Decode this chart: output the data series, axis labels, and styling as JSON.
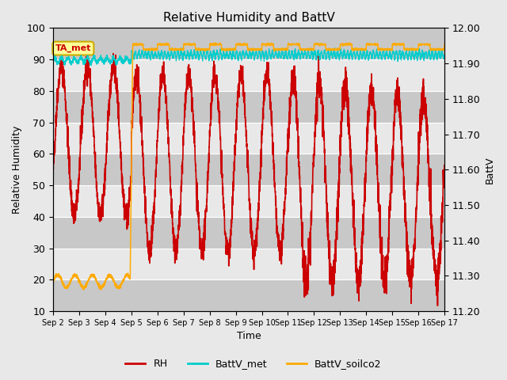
{
  "title": "Relative Humidity and BattV",
  "ylabel_left": "Relative Humidity",
  "ylabel_right": "BattV",
  "xlabel": "Time",
  "ylim_left": [
    10,
    100
  ],
  "ylim_right": [
    11.2,
    12.0
  ],
  "x_tick_labels": [
    "Sep 2",
    "Sep 3",
    "Sep 4",
    "Sep 5",
    "Sep 6",
    "Sep 7",
    "Sep 8",
    "Sep 9",
    "Sep 10",
    "Sep 11",
    "Sep 12",
    "Sep 13",
    "Sep 14",
    "Sep 15",
    "Sep 16",
    "Sep 17"
  ],
  "annotation_text": "TA_met",
  "annotation_color": "#cc0000",
  "annotation_bg": "#ffff99",
  "annotation_border": "#ccaa00",
  "fig_bg": "#e8e8e8",
  "plot_bg": "#dcdcdc",
  "rh_color": "#cc0000",
  "battv_met_color": "#00cccc",
  "battv_soilco2_color": "#ffaa00",
  "legend_labels": [
    "RH",
    "BattV_met",
    "BattV_soilco2"
  ],
  "yticks_left": [
    10,
    20,
    30,
    40,
    50,
    60,
    70,
    80,
    90,
    100
  ],
  "yticks_right": [
    11.2,
    11.3,
    11.4,
    11.5,
    11.6,
    11.7,
    11.8,
    11.9,
    12.0
  ]
}
